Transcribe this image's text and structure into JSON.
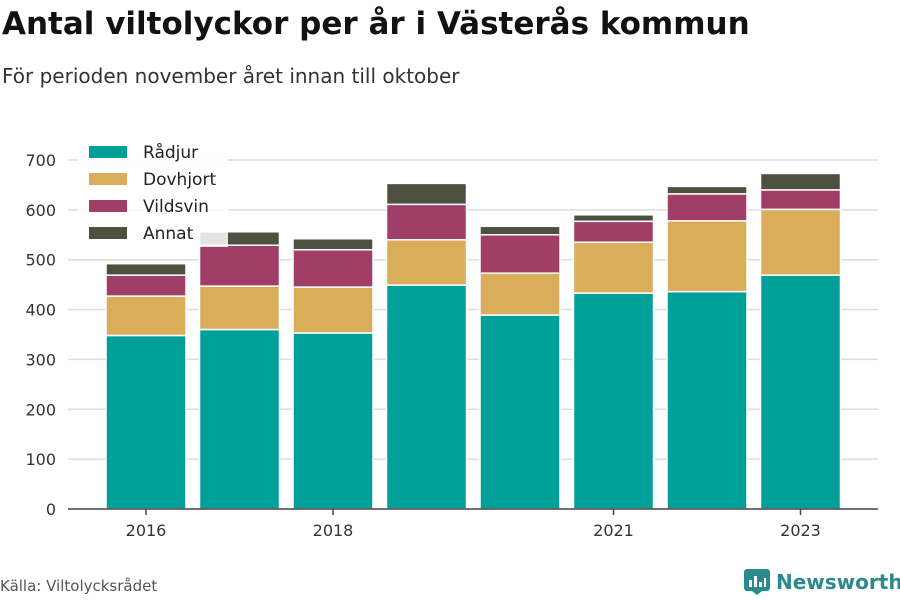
{
  "header": {
    "title": "Antal viltolyckor per år i Västerås kommun",
    "subtitle": "För perioden november året innan till oktober"
  },
  "footer": {
    "source": "Källa: Viltolycksrådet",
    "brand": "Newsworthy",
    "brand_icon": "bar-chart-icon",
    "brand_color": "#2a8a8c"
  },
  "chart_data": {
    "type": "bar",
    "stacked": true,
    "title": "Antal viltolyckor per år i Västerås kommun",
    "subtitle": "För perioden november året innan till oktober",
    "categories": [
      "2016",
      "2017",
      "2018",
      "2019",
      "2020",
      "2021",
      "2022",
      "2023"
    ],
    "x_tick_labels": [
      "2016",
      "",
      "2018",
      "",
      "",
      "2021",
      "",
      "2023"
    ],
    "y_ticks": [
      0,
      100,
      200,
      300,
      400,
      500,
      600,
      700
    ],
    "ylim": [
      0,
      720
    ],
    "grid": true,
    "legend_position": "top-left",
    "series": [
      {
        "name": "Rådjur",
        "color": "#00a099",
        "values": [
          348,
          360,
          353,
          449,
          389,
          433,
          436,
          469
        ]
      },
      {
        "name": "Dovhjort",
        "color": "#d9ad5a",
        "values": [
          79,
          87,
          92,
          91,
          84,
          102,
          142,
          132
        ]
      },
      {
        "name": "Vildsvin",
        "color": "#a13e68",
        "values": [
          42,
          82,
          75,
          71,
          77,
          42,
          54,
          39
        ]
      },
      {
        "name": "Annat",
        "color": "#4e5040",
        "values": [
          23,
          27,
          22,
          42,
          17,
          13,
          15,
          33
        ]
      }
    ]
  }
}
